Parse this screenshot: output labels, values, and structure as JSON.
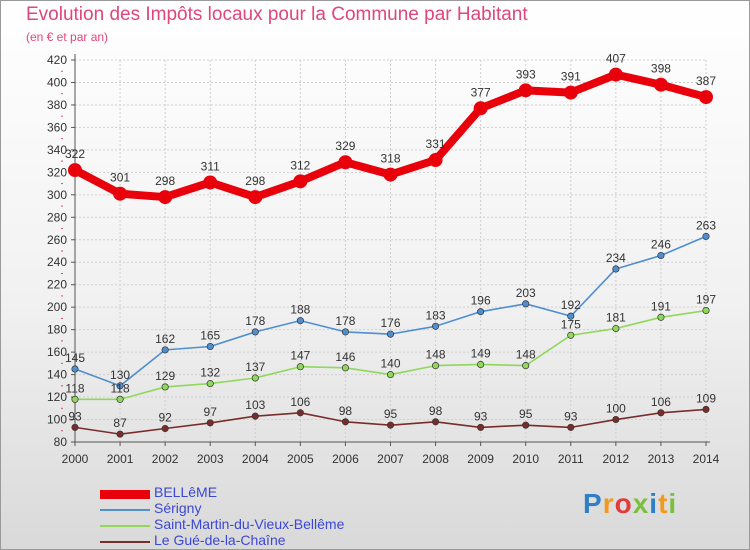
{
  "title": "Evolution des Impôts locaux pour la Commune par Habitant",
  "subtitle": "(en € et par an)",
  "logo": {
    "text": "Proxiti",
    "colors": [
      "#2f7fc7",
      "#f29a1d",
      "#e23b3b",
      "#7cbf3c",
      "#2f7fc7",
      "#f29a1d",
      "#7cbf3c"
    ]
  },
  "chart_data": {
    "type": "line",
    "x": [
      2000,
      2001,
      2002,
      2003,
      2004,
      2005,
      2006,
      2007,
      2008,
      2009,
      2010,
      2011,
      2012,
      2013,
      2014
    ],
    "ylim": [
      80,
      420
    ],
    "yticks": [
      80,
      100,
      120,
      140,
      160,
      180,
      200,
      220,
      240,
      260,
      280,
      300,
      320,
      340,
      360,
      380,
      400,
      420
    ],
    "grid": true,
    "legend_position": "bottom-left",
    "series": [
      {
        "name": "BELLêME",
        "color": "#e8000b",
        "emphasis": true,
        "values": [
          322,
          301,
          298,
          311,
          298,
          312,
          329,
          318,
          331,
          377,
          393,
          391,
          407,
          398,
          387
        ]
      },
      {
        "name": "Sérigny",
        "color": "#4f8fd0",
        "values": [
          145,
          130,
          162,
          165,
          178,
          188,
          178,
          176,
          183,
          196,
          203,
          192,
          234,
          246,
          263
        ]
      },
      {
        "name": "Saint-Martin-du-Vieux-Bellême",
        "color": "#8fd85a",
        "values": [
          118,
          118,
          129,
          132,
          137,
          147,
          146,
          140,
          148,
          149,
          148,
          175,
          181,
          191,
          197
        ]
      },
      {
        "name": "Le Gué-de-la-Chaîne",
        "color": "#7a2c2c",
        "values": [
          93,
          87,
          92,
          97,
          103,
          106,
          98,
          95,
          98,
          93,
          95,
          93,
          100,
          106,
          109
        ]
      }
    ]
  }
}
